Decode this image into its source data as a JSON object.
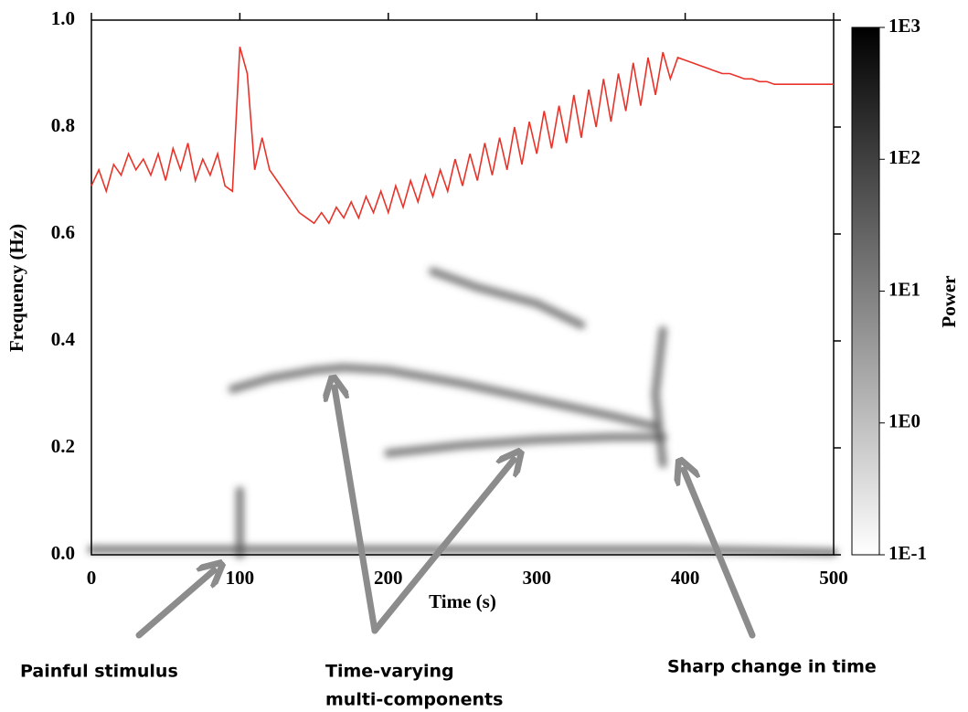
{
  "chart_data": {
    "type": "spectrogram",
    "xlabel": "Time (s)",
    "ylabel": "Frequency (Hz)",
    "xlim": [
      0,
      500
    ],
    "ylim": [
      0,
      1.0
    ],
    "xticks": [
      0,
      100,
      200,
      300,
      400,
      500
    ],
    "yticks": [
      {
        "value": 0,
        "label": "0.0"
      },
      {
        "value": 0.2,
        "label": "0.2"
      },
      {
        "value": 0.4,
        "label": "0.4"
      },
      {
        "value": 0.6,
        "label": "0.6"
      },
      {
        "value": 0.8,
        "label": "0.8"
      },
      {
        "value": 1.0,
        "label": "1.0"
      }
    ],
    "colorbar": {
      "label": "Power",
      "log_scale": true,
      "clim": [
        0.1,
        1000
      ],
      "ticks": [
        {
          "value": 0.1,
          "label": "1E-1"
        },
        {
          "value": 1,
          "label": "1E0"
        },
        {
          "value": 10,
          "label": "1E1"
        },
        {
          "value": 100,
          "label": "1E2"
        },
        {
          "value": 1000,
          "label": "1E3"
        }
      ]
    },
    "ridges": [
      {
        "x": [
          95,
          120,
          150,
          170,
          200,
          250,
          300,
          350,
          380
        ],
        "values": [
          0.31,
          0.33,
          0.345,
          0.35,
          0.345,
          0.32,
          0.29,
          0.26,
          0.24
        ]
      },
      {
        "x": [
          200,
          250,
          300,
          350,
          385
        ],
        "values": [
          0.19,
          0.205,
          0.215,
          0.22,
          0.22
        ]
      },
      {
        "x": [
          0,
          100,
          200,
          300,
          400,
          500
        ],
        "values": [
          0.01,
          0.01,
          0.01,
          0.01,
          0.01,
          0.005
        ]
      },
      {
        "x": [
          100,
          100
        ],
        "values": [
          0,
          0.12
        ]
      },
      {
        "x": [
          385,
          380,
          385
        ],
        "values": [
          0.42,
          0.3,
          0.17
        ]
      },
      {
        "x": [
          230,
          260,
          300,
          330
        ],
        "values": [
          0.53,
          0.5,
          0.47,
          0.43
        ]
      }
    ],
    "ridge_color": "#555555",
    "series": [
      {
        "color": "#e8332a",
        "x": [
          0,
          5,
          10,
          15,
          20,
          25,
          30,
          35,
          40,
          45,
          50,
          55,
          60,
          65,
          70,
          75,
          80,
          85,
          90,
          95,
          100,
          105,
          110,
          115,
          120,
          125,
          130,
          135,
          140,
          145,
          150,
          155,
          160,
          165,
          170,
          175,
          180,
          185,
          190,
          195,
          200,
          205,
          210,
          215,
          220,
          225,
          230,
          235,
          240,
          245,
          250,
          255,
          260,
          265,
          270,
          275,
          280,
          285,
          290,
          295,
          300,
          305,
          310,
          315,
          320,
          325,
          330,
          335,
          340,
          345,
          350,
          355,
          360,
          365,
          370,
          375,
          380,
          385,
          390,
          395,
          400,
          405,
          410,
          415,
          420,
          425,
          430,
          435,
          440,
          445,
          450,
          455,
          460,
          465,
          470,
          475,
          480,
          485,
          490,
          495,
          500
        ],
        "values": [
          0.69,
          0.72,
          0.68,
          0.73,
          0.71,
          0.75,
          0.72,
          0.74,
          0.71,
          0.75,
          0.7,
          0.76,
          0.72,
          0.77,
          0.7,
          0.74,
          0.71,
          0.75,
          0.69,
          0.68,
          0.95,
          0.9,
          0.72,
          0.78,
          0.72,
          0.7,
          0.68,
          0.66,
          0.64,
          0.63,
          0.62,
          0.64,
          0.62,
          0.65,
          0.63,
          0.66,
          0.63,
          0.67,
          0.64,
          0.68,
          0.64,
          0.69,
          0.65,
          0.7,
          0.66,
          0.71,
          0.67,
          0.72,
          0.68,
          0.74,
          0.69,
          0.75,
          0.7,
          0.77,
          0.71,
          0.78,
          0.72,
          0.8,
          0.73,
          0.81,
          0.75,
          0.83,
          0.76,
          0.84,
          0.77,
          0.86,
          0.78,
          0.87,
          0.8,
          0.89,
          0.81,
          0.9,
          0.83,
          0.92,
          0.84,
          0.93,
          0.86,
          0.94,
          0.89,
          0.93,
          0.925,
          0.92,
          0.915,
          0.91,
          0.905,
          0.9,
          0.9,
          0.895,
          0.89,
          0.89,
          0.885,
          0.885,
          0.88,
          0.88,
          0.88,
          0.88,
          0.88,
          0.88,
          0.88,
          0.88,
          0.88
        ]
      }
    ],
    "annotations": [
      "Painful stimulus",
      "Time-varying",
      "multi-components",
      "Sharp change in time"
    ]
  }
}
